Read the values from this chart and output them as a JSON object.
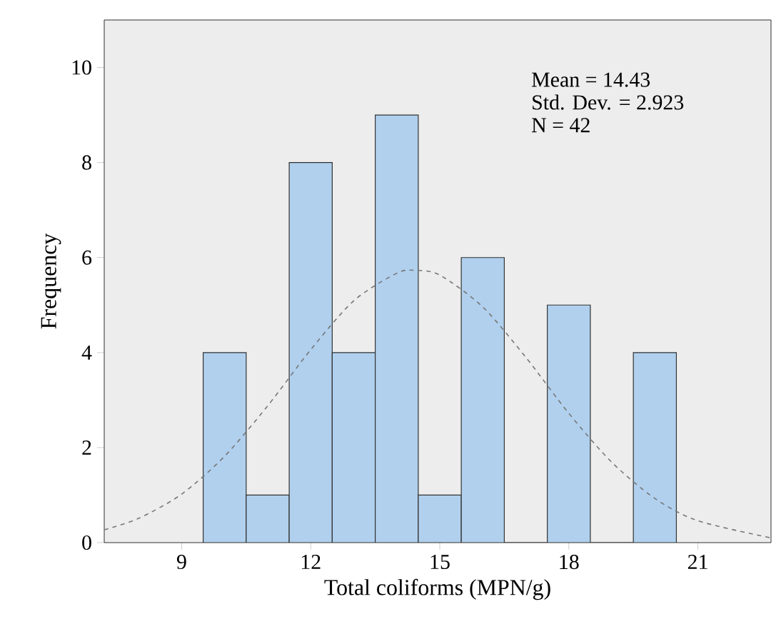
{
  "chart_data": {
    "type": "histogram",
    "xlabel": "Total coliforms (MPN/g)",
    "ylabel": "Frequency",
    "bins": [
      9.5,
      10.5,
      11.5,
      12.5,
      13.5,
      14.5,
      15.5,
      16.5,
      17.5,
      18.5,
      19.5,
      20.5
    ],
    "values": [
      4,
      1,
      8,
      4,
      9,
      1,
      6,
      0,
      5,
      0,
      4
    ],
    "color": "#b0d0ee",
    "series": [
      {
        "type": "line",
        "color": "#777777",
        "line_style": "dashed",
        "x": [
          7.2,
          8,
          9,
          10,
          11,
          12,
          13,
          14,
          14.43,
          15,
          16,
          17,
          18,
          19,
          20,
          21,
          22.7
        ],
        "values": [
          0.27,
          0.51,
          1.02,
          1.82,
          2.88,
          4.06,
          5.09,
          5.67,
          5.73,
          5.63,
          4.96,
          3.9,
          2.72,
          1.69,
          0.93,
          0.46,
          0.1
        ]
      }
    ],
    "xlim": [
      7.2,
      22.7
    ],
    "ylim": [
      0,
      11
    ],
    "xticks": [
      9,
      12,
      15,
      18,
      21
    ],
    "yticks": [
      0,
      2,
      4,
      6,
      8,
      10
    ],
    "annotations": [
      "Mean = 14.43",
      "Std. Dev. = 2.923",
      "N = 42"
    ],
    "grid": false
  }
}
